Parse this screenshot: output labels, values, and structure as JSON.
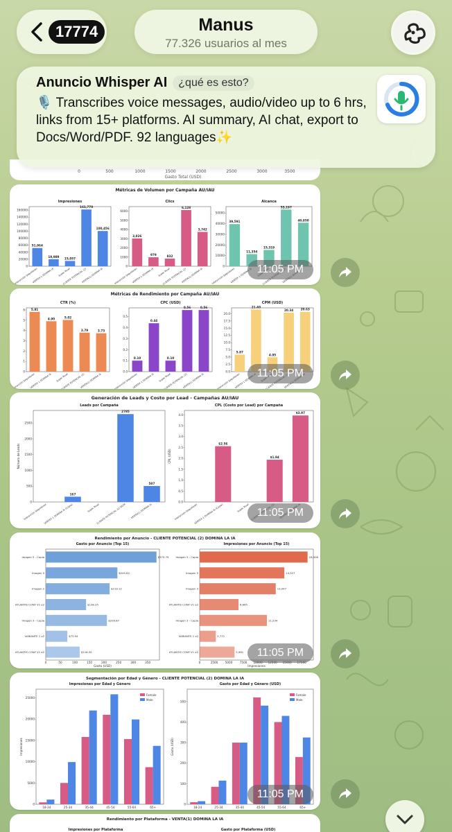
{
  "header": {
    "back_count": "17774",
    "title": "Manus",
    "subtitle": "77.326 usuarios al mes"
  },
  "ad": {
    "title": "Anuncio Whisper AI",
    "tag": "¿qué es esto?",
    "text": "🎙️ Transcribes voice messages, audio/video up to 6 hrs, links from 15+ platforms. AI summary, AI chat, export to Docs/Word/PDF. 92 languages✨"
  },
  "prev_msg": {
    "axis_ticks": [
      "0",
      "500",
      "1000",
      "1500",
      "2000",
      "2500",
      "3000",
      "3500"
    ],
    "axis_label": "Gasto Total (USD)"
  },
  "messages": [
    {
      "time": "11:05 PM",
      "title": "Métricas de Volumen por Campaña AU/IAU"
    },
    {
      "time": "11:05 PM",
      "title": "Métricas de Rendimiento por Campaña AU/IAU"
    },
    {
      "time": "11:05 PM",
      "title": "Generación de Leads y Costo por Lead - Campañas AU/IAU"
    },
    {
      "time": "11:05 PM",
      "title": "Rendimiento por Anuncio - CLIENTE POTENCIAL (2) DOMINA LA IA"
    },
    {
      "time": "11:05 PM",
      "title": "Segmentación por Edad y Género - CLIENTE POTENCIAL (2) DOMINA LA IA"
    },
    {
      "time": "",
      "title": "Rendimiento por Plataforma - VENTA(1) DOMINA LA IA"
    }
  ],
  "chart_data": [
    {
      "type": "bar",
      "title": "Impresiones",
      "categories": [
        "Interacción Seguidores",
        "VERTEX 1 DOMINA IA",
        "Super Bowl",
        "CLIENTE POTENCIAL (2)",
        "VENTA(1) DOMINA IA"
      ],
      "values": [
        51964,
        19989,
        15057,
        161770,
        100456
      ],
      "labels": [
        "51,964",
        "19,989",
        "15,057",
        "161,770",
        "100,456"
      ],
      "ylim": [
        0,
        170000
      ],
      "yticks": [
        "0",
        "20000",
        "40000",
        "60000",
        "80000",
        "100000",
        "120000",
        "140000",
        "160000"
      ],
      "color": "#4e86e6"
    },
    {
      "type": "bar",
      "title": "Clics",
      "categories": [
        "Interacción Seguidores",
        "VERTEX 1 DOMINA IA",
        "Super Bowl",
        "CLIENTE POTENCIAL (2)",
        "VENTA(1) DOMINA IA"
      ],
      "values": [
        3026,
        979,
        832,
        6128,
        3742
      ],
      "labels": [
        "3,026",
        "979",
        "832",
        "6,128",
        "3,742"
      ],
      "ylim": [
        0,
        6500
      ],
      "yticks": [
        "0",
        "1000",
        "2000",
        "3000",
        "4000",
        "5000",
        "6000"
      ],
      "color": "#d65c86"
    },
    {
      "type": "bar",
      "title": "Alcance",
      "categories": [
        "Interacción Seguidores",
        "VERTEX 1 DOMINA IA",
        "Super Bowl",
        "CLIENTE POTENCIAL (2)",
        "VENTA(1) DOMINA IA"
      ],
      "values": [
        39591,
        11354,
        15319,
        53197,
        40850
      ],
      "labels": [
        "39,591",
        "11,354",
        "15,319",
        "53,197",
        "40,850"
      ],
      "ylim": [
        0,
        56000
      ],
      "yticks": [
        "0",
        "10000",
        "20000",
        "30000",
        "40000",
        "50000"
      ],
      "color": "#6fc4b0"
    },
    {
      "type": "bar",
      "title": "CTR (%)",
      "categories": [
        "Interacción Seguidores",
        "VERTEX 1 DOMINA IA",
        "Super Bowl",
        "CLIENTE POTENCIAL (2)",
        "VENTA(1) DOMINA IA"
      ],
      "values": [
        5.81,
        4.9,
        5.02,
        3.79,
        3.73
      ],
      "labels": [
        "5.81",
        "4.90",
        "5.02",
        "3.79",
        "3.73"
      ],
      "ylim": [
        0,
        6.2
      ],
      "yticks": [
        "0",
        "1",
        "2",
        "3",
        "4",
        "5",
        "6"
      ],
      "color": "#ec8a54"
    },
    {
      "type": "bar",
      "title": "CPC (USD)",
      "categories": [
        "Interacción Seguidores",
        "VERTEX 1 DOMINA IA",
        "Super Bowl",
        "CLIENTE POTENCIAL (2)",
        "VENTA(1) DOMINA IA"
      ],
      "values": [
        0.1,
        0.44,
        0.1,
        0.56,
        0.56
      ],
      "labels": [
        "0.10",
        "0.44",
        "0.10",
        "0.56",
        "0.56"
      ],
      "ylim": [
        0,
        0.58
      ],
      "yticks": [
        "0.0",
        "0.1",
        "0.2",
        "0.3",
        "0.4",
        "0.5"
      ],
      "color": "#8b45c9"
    },
    {
      "type": "bar",
      "title": "CPM (USD)",
      "categories": [
        "Interacción Seguidores",
        "VERTEX 1 DOMINA IA",
        "Super Bowl",
        "CLIENTE POTENCIAL (2)",
        "VENTA(1) DOMINA IA"
      ],
      "values": [
        5.87,
        21.4,
        4.95,
        20.34,
        20.63
      ],
      "labels": [
        "5.87",
        "21.40",
        "4.95",
        "20.34",
        "20.63"
      ],
      "ylim": [
        0,
        22
      ],
      "yticks": [
        "0.0",
        "2.5",
        "5.0",
        "7.5",
        "10.0",
        "12.5",
        "15.0",
        "17.5",
        "20.0"
      ],
      "color": "#f6d07a"
    },
    {
      "type": "bar",
      "title": "Leads por Campaña",
      "ylabel": "Número de Leads",
      "categories": [
        "Interacción Seguidores",
        "VERTEX 1 DOMINA IA (Copia)",
        "Super Bowl",
        "CLIENTE POTENCIAL (2) DOM",
        "VENTA(1) DOMINA IA"
      ],
      "values": [
        0,
        167,
        0,
        2785,
        507
      ],
      "labels": [
        "",
        "167",
        "",
        "2785",
        "507"
      ],
      "ylim": [
        0,
        2900
      ],
      "yticks": [
        "0",
        "500",
        "1000",
        "1500",
        "2000",
        "2500"
      ],
      "color": "#4e86e6"
    },
    {
      "type": "bar",
      "title": "CPL (Costo por Lead) por Campaña",
      "ylabel": "CPL (USD)",
      "categories": [
        "Interacción Seguidores",
        "VERTEX 1 DOMINA IA (Copia)",
        "Super Bowl",
        "CLIENTE POTENCIAL (2)",
        "VENTA(1) DOMINA IA"
      ],
      "values": [
        0,
        2.56,
        0,
        1.94,
        3.97
      ],
      "labels": [
        "",
        "$2.56",
        "",
        "$1.94",
        "$3.97"
      ],
      "ylim": [
        0,
        4.2
      ],
      "yticks": [
        "0.0",
        "0.5",
        "1.0",
        "1.5",
        "2.0",
        "2.5",
        "3.0",
        "3.5",
        "4.0"
      ],
      "color": "#d65c86"
    },
    {
      "type": "barh",
      "title": "Gasto por Anuncio (Top 15)",
      "xlabel": "Gasto (USD)",
      "categories": [
        "Imagen 5 - Copia",
        "Imagen 5",
        "Imagen 2",
        "ATLANTIS CONF V1 e2",
        "Imagen 3 - Copia",
        "VARIANTE 1 v2",
        "ATLANTIS CONF V1 e2"
      ],
      "values": [
        379.79,
        245.62,
        219.12,
        138.35,
        209.87,
        73.94,
        116.3
      ],
      "labels": [
        "$379.79",
        "$245.62",
        "$219.12",
        "$138.35",
        "$209.87",
        "$73.94",
        "$116.30"
      ],
      "xlim": [
        0,
        390
      ],
      "xticks": [
        "0",
        "50",
        "100",
        "150",
        "200",
        "250",
        "300",
        "350"
      ],
      "color": "#6fa0d8"
    },
    {
      "type": "barh",
      "title": "Impresiones por Anuncio (Top 15)",
      "xlabel": "Impresiones",
      "categories": [
        "Imagen 5 - Copia",
        "Imagen 5",
        "Imagen 3",
        "ATLANTIS CONF V1 e2",
        "Imagen 3 - Copia",
        "VARIANTE 1 v2",
        "ATLANTIS CONF V1 e2"
      ],
      "values": [
        18508,
        14527,
        13047,
        6665,
        11534,
        2771,
        5981
      ],
      "labels": [
        "18,508",
        "14,527",
        "13,047",
        "6,665",
        "11,534",
        "2,771",
        "5,981"
      ],
      "xlim": [
        0,
        19500
      ],
      "xticks": [
        "0",
        "2500",
        "5000",
        "7500",
        "10000",
        "12500",
        "15000",
        "17500"
      ],
      "color": "#e06a4e"
    },
    {
      "type": "bar",
      "title": "Impresiones por Edad y Género",
      "ylabel": "Impresiones",
      "categories": [
        "18-24",
        "25-34",
        "35-44",
        "45-54",
        "55-64",
        "65+"
      ],
      "series": [
        {
          "name": "Female",
          "values": [
            450,
            5000,
            15800,
            21000,
            15300,
            8700
          ]
        },
        {
          "name": "Male",
          "values": [
            1100,
            9900,
            22000,
            25800,
            19900,
            13700
          ]
        }
      ],
      "ylim": [
        0,
        27000
      ],
      "yticks": [
        "0",
        "5000",
        "10000",
        "15000",
        "20000",
        "25000"
      ],
      "colors": [
        "#d65c86",
        "#4e86e6"
      ]
    },
    {
      "type": "bar",
      "title": "Gasto por Edad y Género (USD)",
      "ylabel": "Gasto (USD)",
      "categories": [
        "18-24",
        "25-34",
        "35-44",
        "45-54",
        "55-64",
        "65+"
      ],
      "series": [
        {
          "name": "Female",
          "values": [
            10,
            85,
            300,
            520,
            400,
            230
          ]
        },
        {
          "name": "Male",
          "values": [
            15,
            115,
            300,
            480,
            430,
            325
          ]
        }
      ],
      "ylim": [
        0,
        560
      ],
      "yticks": [
        "0",
        "100",
        "200",
        "300",
        "400",
        "500"
      ],
      "colors": [
        "#d65c86",
        "#4e86e6"
      ]
    },
    {
      "type": "bar",
      "title": "Impresiones por Plataforma",
      "categories": [],
      "values": []
    },
    {
      "type": "bar",
      "title": "Gasto por Plataforma (USD)",
      "categories": [],
      "values": []
    }
  ]
}
